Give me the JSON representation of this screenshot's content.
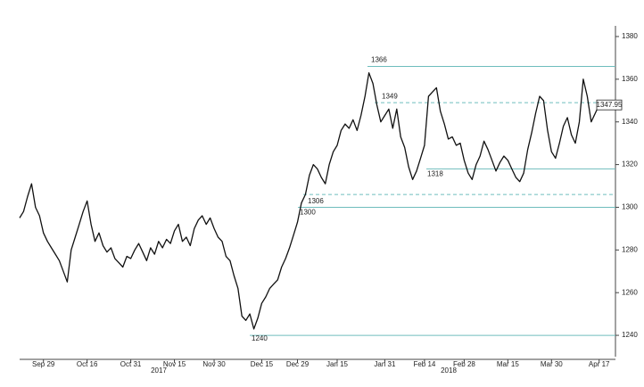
{
  "chart_data": {
    "type": "line",
    "color": "#111111",
    "level_color": "#6fbdbd",
    "categories": [
      null,
      null,
      null,
      null,
      null,
      null,
      "Sep 29",
      null,
      null,
      null,
      null,
      null,
      null,
      null,
      null,
      null,
      null,
      "Oct 16",
      null,
      null,
      null,
      null,
      null,
      null,
      null,
      null,
      null,
      null,
      "Oct 31",
      null,
      null,
      null,
      null,
      null,
      null,
      null,
      null,
      null,
      null,
      "Nov 15",
      null,
      null,
      null,
      null,
      null,
      null,
      null,
      null,
      null,
      "Nov 30",
      null,
      null,
      null,
      null,
      null,
      null,
      null,
      null,
      null,
      null,
      null,
      "Dec 15",
      null,
      null,
      null,
      null,
      null,
      null,
      null,
      null,
      "Dec 29",
      null,
      null,
      null,
      null,
      null,
      null,
      null,
      null,
      null,
      "Jan 15",
      null,
      null,
      null,
      null,
      null,
      null,
      null,
      null,
      null,
      null,
      null,
      "Jan 31",
      null,
      null,
      null,
      null,
      null,
      null,
      null,
      null,
      null,
      "Feb 14",
      null,
      null,
      null,
      null,
      null,
      null,
      null,
      null,
      null,
      "Feb 28",
      null,
      null,
      null,
      null,
      null,
      null,
      null,
      null,
      null,
      null,
      "Mar 15",
      null,
      null,
      null,
      null,
      null,
      null,
      null,
      null,
      null,
      null,
      "Mar 30",
      null,
      null,
      null,
      null,
      null,
      null,
      null,
      null,
      null,
      null,
      null,
      "Apr 17"
    ],
    "values": [
      1295,
      1298,
      1305,
      1311,
      1300,
      1296,
      1288,
      1284,
      1281,
      1278,
      1275,
      1270,
      1265,
      1280,
      1286,
      1292,
      1298,
      1303,
      1292,
      1284,
      1288,
      1282,
      1279,
      1281,
      1276,
      1274,
      1272,
      1277,
      1276,
      1280,
      1283,
      1279,
      1275,
      1281,
      1278,
      1284,
      1281,
      1285,
      1283,
      1289,
      1292,
      1284,
      1286,
      1282,
      1290,
      1294,
      1296,
      1292,
      1295,
      1290,
      1286,
      1284,
      1277,
      1275,
      1268,
      1262,
      1249,
      1247,
      1250,
      1243,
      1248,
      1255,
      1258,
      1262,
      1264,
      1266,
      1272,
      1276,
      1281,
      1287,
      1293,
      1302,
      1306,
      1315,
      1320,
      1318,
      1314,
      1311,
      1320,
      1326,
      1329,
      1336,
      1339,
      1337,
      1341,
      1336,
      1343,
      1352,
      1363,
      1358,
      1348,
      1340,
      1343,
      1346,
      1337,
      1346,
      1333,
      1328,
      1319,
      1313,
      1317,
      1323,
      1329,
      1352,
      1354,
      1356,
      1345,
      1339,
      1332,
      1333,
      1329,
      1330,
      1322,
      1316,
      1313,
      1320,
      1324,
      1331,
      1327,
      1322,
      1317,
      1321,
      1324,
      1322,
      1318,
      1314,
      1312,
      1316,
      1327,
      1335,
      1344,
      1352,
      1350,
      1336,
      1326,
      1323,
      1330,
      1338,
      1342,
      1334,
      1330,
      1340,
      1360,
      1352,
      1340,
      1344,
      1347.95
    ],
    "year_labels": [
      "2017",
      "2018"
    ],
    "ylim": [
      1230,
      1385
    ],
    "yticks": [
      1240,
      1260,
      1280,
      1300,
      1320,
      1340,
      1360,
      1380
    ],
    "levels": [
      {
        "value": 1366,
        "style": "solid"
      },
      {
        "value": 1349,
        "style": "dashed"
      },
      {
        "value": 1318,
        "style": "solid"
      },
      {
        "value": 1306,
        "style": "dashed"
      },
      {
        "value": 1300,
        "style": "solid"
      },
      {
        "value": 1240,
        "style": "solid"
      }
    ]
  }
}
